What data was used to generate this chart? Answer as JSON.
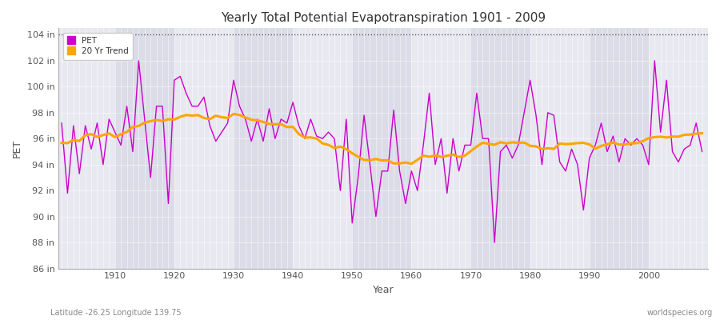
{
  "title": "Yearly Total Potential Evapotranspiration 1901 - 2009",
  "xlabel": "Year",
  "ylabel": "PET",
  "lat_lon_label": "Latitude -26.25 Longitude 139.75",
  "watermark": "worldspecies.org",
  "background_color": "#ffffff",
  "plot_bg_color": "#dcdce8",
  "band_color": "#e8e8f0",
  "pet_color": "#cc00cc",
  "trend_color": "#ffa500",
  "ylim": [
    86,
    104.5
  ],
  "xlim": [
    1900.5,
    2010
  ],
  "yticks": [
    86,
    88,
    90,
    92,
    94,
    96,
    98,
    100,
    102,
    104
  ],
  "ytick_labels": [
    "86 in",
    "88 in",
    "90 in",
    "92 in",
    "94 in",
    "96 in",
    "98 in",
    "100 in",
    "102 in",
    "104 in"
  ],
  "xticks": [
    1910,
    1920,
    1930,
    1940,
    1950,
    1960,
    1970,
    1980,
    1990,
    2000
  ],
  "years": [
    1901,
    1902,
    1903,
    1904,
    1905,
    1906,
    1907,
    1908,
    1909,
    1910,
    1911,
    1912,
    1913,
    1914,
    1915,
    1916,
    1917,
    1918,
    1919,
    1920,
    1921,
    1922,
    1923,
    1924,
    1925,
    1926,
    1927,
    1928,
    1929,
    1930,
    1931,
    1932,
    1933,
    1934,
    1935,
    1936,
    1937,
    1938,
    1939,
    1940,
    1941,
    1942,
    1943,
    1944,
    1945,
    1946,
    1947,
    1948,
    1949,
    1950,
    1951,
    1952,
    1953,
    1954,
    1955,
    1956,
    1957,
    1958,
    1959,
    1960,
    1961,
    1962,
    1963,
    1964,
    1965,
    1966,
    1967,
    1968,
    1969,
    1970,
    1971,
    1972,
    1973,
    1974,
    1975,
    1976,
    1977,
    1978,
    1979,
    1980,
    1981,
    1982,
    1983,
    1984,
    1985,
    1986,
    1987,
    1988,
    1989,
    1990,
    1991,
    1992,
    1993,
    1994,
    1995,
    1996,
    1997,
    1998,
    1999,
    2000,
    2001,
    2002,
    2003,
    2004,
    2005,
    2006,
    2007,
    2008,
    2009
  ],
  "pet_values": [
    97.2,
    91.8,
    97.0,
    93.3,
    97.0,
    95.2,
    97.2,
    94.0,
    97.5,
    96.5,
    95.5,
    98.5,
    95.0,
    102.0,
    97.5,
    93.0,
    98.5,
    98.5,
    91.0,
    100.5,
    100.8,
    99.5,
    98.5,
    98.5,
    99.2,
    97.0,
    95.8,
    96.5,
    97.2,
    100.5,
    98.5,
    97.5,
    95.8,
    97.5,
    95.8,
    98.3,
    96.0,
    97.5,
    97.2,
    98.8,
    97.0,
    96.0,
    97.5,
    96.2,
    96.0,
    96.5,
    96.0,
    92.0,
    97.5,
    89.5,
    93.0,
    97.8,
    94.0,
    90.0,
    93.5,
    93.5,
    98.2,
    93.5,
    91.0,
    93.5,
    92.0,
    95.5,
    99.5,
    94.0,
    96.0,
    91.8,
    96.0,
    93.5,
    95.5,
    95.5,
    99.5,
    96.0,
    96.0,
    88.0,
    95.0,
    95.5,
    94.5,
    95.5,
    98.0,
    100.5,
    97.8,
    94.0,
    98.0,
    97.8,
    94.2,
    93.5,
    95.2,
    94.0,
    90.5,
    94.5,
    95.5,
    97.2,
    95.0,
    96.2,
    94.2,
    96.0,
    95.5,
    96.0,
    95.5,
    94.0,
    102.0,
    96.5,
    100.5,
    95.0,
    94.2,
    95.2,
    95.5,
    97.2,
    95.0
  ],
  "legend_pet_label": "PET",
  "legend_trend_label": "20 Yr Trend"
}
